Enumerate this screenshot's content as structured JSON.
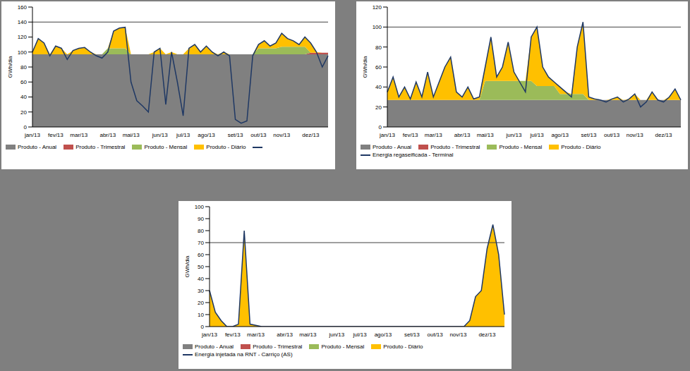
{
  "chart_data": [
    {
      "type": "area",
      "y_label": "GWh/dia",
      "stacked": true,
      "legend": "bottom",
      "tick_labels": true,
      "categories": [
        "jan/13",
        null,
        null,
        null,
        "fev/13",
        null,
        null,
        null,
        "mar/13",
        null,
        null,
        null,
        null,
        "abr/13",
        null,
        null,
        null,
        "mai/13",
        null,
        null,
        null,
        null,
        "jun/13",
        null,
        null,
        null,
        "jul/13",
        null,
        null,
        null,
        "ago/13",
        null,
        null,
        null,
        null,
        "set/13",
        null,
        null,
        null,
        "out/13",
        null,
        null,
        null,
        "nov/13",
        null,
        null,
        null,
        null,
        "dez/13",
        null,
        null,
        null
      ],
      "ylim": [
        0,
        160
      ],
      "yticks": [
        0,
        20,
        40,
        60,
        80,
        100,
        120,
        140,
        160
      ],
      "reference_line": 140,
      "series": [
        {
          "name": "Produto - Anual",
          "type": "area",
          "color": "#808080",
          "values": [
            97,
            97,
            97,
            97,
            97,
            97,
            97,
            97,
            97,
            97,
            97,
            97,
            97,
            97,
            97,
            97,
            97,
            97,
            97,
            97,
            97,
            97,
            97,
            97,
            97,
            97,
            97,
            97,
            97,
            97,
            97,
            97,
            97,
            97,
            97,
            97,
            97,
            97,
            97,
            97,
            97,
            97,
            97,
            97,
            97,
            97,
            97,
            97,
            97,
            97,
            97,
            97
          ]
        },
        {
          "name": "Produto - Trimestral",
          "type": "area",
          "color": "#c0504d",
          "values": [
            0,
            0,
            0,
            0,
            0,
            0,
            0,
            0,
            0,
            0,
            0,
            0,
            0,
            0,
            0,
            0,
            0,
            0,
            0,
            0,
            0,
            0,
            0,
            0,
            0,
            0,
            0,
            0,
            0,
            0,
            0,
            0,
            0,
            0,
            0,
            0,
            0,
            0,
            0,
            0,
            0,
            0,
            0,
            0,
            0,
            0,
            0,
            0,
            2,
            2,
            2,
            2
          ]
        },
        {
          "name": "Produto - Mensal",
          "type": "area",
          "color": "#9bbb59",
          "values": [
            0,
            0,
            0,
            0,
            0,
            0,
            0,
            0,
            0,
            0,
            0,
            0,
            0,
            8,
            8,
            8,
            8,
            0,
            0,
            0,
            0,
            0,
            0,
            0,
            0,
            0,
            0,
            0,
            0,
            0,
            0,
            0,
            0,
            0,
            0,
            0,
            0,
            0,
            0,
            8,
            8,
            8,
            8,
            10,
            10,
            10,
            10,
            10,
            0,
            0,
            0,
            0
          ]
        },
        {
          "name": "Produto - Diário",
          "type": "area",
          "color": "#ffc000",
          "values": [
            3,
            21,
            15,
            0,
            11,
            8,
            0,
            5,
            8,
            9,
            3,
            0,
            0,
            0,
            23,
            27,
            28,
            0,
            0,
            0,
            0,
            3,
            8,
            0,
            3,
            0,
            0,
            8,
            13,
            3,
            11,
            3,
            0,
            3,
            0,
            0,
            0,
            0,
            0,
            5,
            10,
            3,
            7,
            18,
            11,
            8,
            3,
            13,
            13,
            1,
            0,
            0
          ]
        },
        {
          "name": null,
          "type": "line",
          "color": "#1f3864",
          "values": [
            100,
            118,
            112,
            95,
            108,
            105,
            90,
            102,
            105,
            106,
            100,
            95,
            92,
            100,
            128,
            132,
            133,
            60,
            35,
            28,
            20,
            100,
            105,
            30,
            100,
            60,
            15,
            105,
            110,
            100,
            108,
            100,
            95,
            100,
            95,
            10,
            5,
            8,
            95,
            110,
            115,
            108,
            112,
            125,
            118,
            115,
            110,
            120,
            112,
            100,
            80,
            95
          ]
        }
      ]
    },
    {
      "type": "area",
      "y_label": "GWh/dia",
      "stacked": true,
      "legend": "bottom",
      "tick_labels": true,
      "categories": [
        "jan/13",
        null,
        null,
        null,
        "fev/13",
        null,
        null,
        null,
        "mar/13",
        null,
        null,
        null,
        null,
        "abr/13",
        null,
        null,
        null,
        "mai/13",
        null,
        null,
        null,
        null,
        "jun/13",
        null,
        null,
        null,
        "jul/13",
        null,
        null,
        null,
        "ago/13",
        null,
        null,
        null,
        null,
        "set/13",
        null,
        null,
        null,
        "out/13",
        null,
        null,
        null,
        "nov/13",
        null,
        null,
        null,
        null,
        "dez/13",
        null,
        null,
        null
      ],
      "ylim": [
        0,
        120
      ],
      "yticks": [
        0,
        20,
        40,
        60,
        80,
        100,
        120
      ],
      "reference_line": 100,
      "series": [
        {
          "name": "Produto - Anual",
          "type": "area",
          "color": "#808080",
          "values": [
            27,
            27,
            27,
            27,
            27,
            27,
            27,
            27,
            27,
            27,
            27,
            27,
            27,
            27,
            27,
            27,
            27,
            27,
            27,
            27,
            27,
            27,
            27,
            27,
            27,
            27,
            27,
            27,
            27,
            27,
            27,
            27,
            27,
            27,
            27,
            27,
            27,
            27,
            27,
            27,
            27,
            27,
            27,
            27,
            27,
            27,
            27,
            27,
            27,
            27,
            27,
            27
          ]
        },
        {
          "name": "Produto - Trimestral",
          "type": "area",
          "color": "#c0504d",
          "values": [
            0,
            0,
            0,
            0,
            0,
            0,
            0,
            0,
            0,
            0,
            0,
            0,
            0,
            0,
            0,
            0,
            0,
            0,
            0,
            0,
            0,
            0,
            0,
            0,
            0,
            0,
            0,
            0,
            0,
            0,
            0,
            0,
            0,
            0,
            0,
            0,
            0,
            0,
            0,
            0,
            0,
            0,
            0,
            0,
            0,
            0,
            0,
            0,
            0,
            0,
            0,
            0
          ]
        },
        {
          "name": "Produto - Mensal",
          "type": "area",
          "color": "#9bbb59",
          "values": [
            0,
            0,
            0,
            0,
            0,
            0,
            0,
            0,
            0,
            0,
            0,
            0,
            0,
            0,
            0,
            0,
            0,
            19,
            19,
            19,
            19,
            19,
            19,
            19,
            19,
            19,
            14,
            14,
            14,
            14,
            6,
            6,
            6,
            6,
            6,
            0,
            0,
            0,
            0,
            0,
            0,
            0,
            0,
            0,
            0,
            0,
            0,
            0,
            0,
            0,
            0,
            0
          ]
        },
        {
          "name": "Produto - Diário",
          "type": "area",
          "color": "#ffc000",
          "values": [
            8,
            23,
            3,
            13,
            1,
            18,
            3,
            28,
            3,
            18,
            33,
            43,
            8,
            3,
            13,
            1,
            3,
            14,
            44,
            4,
            14,
            39,
            9,
            0,
            0,
            44,
            59,
            19,
            9,
            4,
            7,
            2,
            0,
            47,
            72,
            3,
            1,
            0,
            0,
            1,
            3,
            0,
            1,
            6,
            0,
            0,
            8,
            0,
            0,
            3,
            11,
            0
          ]
        },
        {
          "name": "Energia regaseificada - Terminal",
          "type": "line",
          "color": "#1f3864",
          "values": [
            35,
            50,
            30,
            40,
            28,
            45,
            30,
            55,
            30,
            45,
            60,
            70,
            35,
            30,
            40,
            28,
            30,
            60,
            90,
            50,
            60,
            85,
            55,
            45,
            35,
            90,
            100,
            60,
            50,
            45,
            40,
            35,
            30,
            80,
            105,
            30,
            28,
            27,
            25,
            28,
            30,
            25,
            28,
            33,
            20,
            25,
            35,
            27,
            25,
            30,
            38,
            27
          ]
        }
      ]
    },
    {
      "type": "area",
      "y_label": "GWh/dia",
      "stacked": true,
      "legend": "bottom",
      "tick_labels": true,
      "categories": [
        "jan/13",
        null,
        null,
        null,
        "fev/13",
        null,
        null,
        null,
        "mar/13",
        null,
        null,
        null,
        null,
        "abr/13",
        null,
        null,
        null,
        "mai/13",
        null,
        null,
        null,
        null,
        "jun/13",
        null,
        null,
        null,
        "jul/13",
        null,
        null,
        null,
        "ago/13",
        null,
        null,
        null,
        null,
        "set/13",
        null,
        null,
        null,
        "out/13",
        null,
        null,
        null,
        "nov/13",
        null,
        null,
        null,
        null,
        "dez/13",
        null,
        null,
        null
      ],
      "ylim": [
        0,
        100
      ],
      "yticks": [
        0,
        10,
        20,
        30,
        40,
        50,
        60,
        70,
        80,
        90,
        100
      ],
      "reference_line": 70,
      "series": [
        {
          "name": "Produto - Anual",
          "type": "area",
          "color": "#808080",
          "values": [
            0,
            0,
            0,
            0,
            0,
            0,
            0,
            0,
            0,
            0,
            0,
            0,
            0,
            0,
            0,
            0,
            0,
            0,
            0,
            0,
            0,
            0,
            0,
            0,
            0,
            0,
            0,
            0,
            0,
            0,
            0,
            0,
            0,
            0,
            0,
            0,
            0,
            0,
            0,
            0,
            0,
            0,
            0,
            0,
            0,
            0,
            0,
            0,
            0,
            0,
            0,
            0
          ]
        },
        {
          "name": "Produto - Trimestral",
          "type": "area",
          "color": "#c0504d",
          "values": [
            0,
            0,
            0,
            0,
            0,
            0,
            0,
            0,
            0,
            0,
            0,
            0,
            0,
            0,
            0,
            0,
            0,
            0,
            0,
            0,
            0,
            0,
            0,
            0,
            0,
            0,
            0,
            0,
            0,
            0,
            0,
            0,
            0,
            0,
            0,
            0,
            0,
            0,
            0,
            0,
            0,
            0,
            0,
            0,
            0,
            0,
            0,
            0,
            0,
            0,
            0,
            0
          ]
        },
        {
          "name": "Produto - Mensal",
          "type": "area",
          "color": "#9bbb59",
          "values": [
            0,
            0,
            0,
            0,
            0,
            0,
            0,
            0,
            0,
            0,
            0,
            0,
            0,
            0,
            0,
            0,
            0,
            0,
            0,
            0,
            0,
            0,
            0,
            0,
            0,
            0,
            0,
            0,
            0,
            0,
            0,
            0,
            0,
            0,
            0,
            0,
            0,
            0,
            0,
            0,
            0,
            0,
            0,
            0,
            0,
            0,
            0,
            0,
            0,
            0,
            0,
            0
          ]
        },
        {
          "name": "Produto - Diário",
          "type": "area",
          "color": "#ffc000",
          "values": [
            30,
            12,
            5,
            0,
            0,
            2,
            80,
            2,
            1,
            0,
            0,
            0,
            0,
            0,
            0,
            0,
            0,
            0,
            0,
            0,
            0,
            0,
            0,
            0,
            0,
            0,
            0,
            0,
            0,
            0,
            0,
            0,
            0,
            0,
            0,
            0,
            0,
            0,
            0,
            0,
            0,
            0,
            0,
            0,
            0,
            5,
            25,
            30,
            65,
            85,
            60,
            10
          ]
        },
        {
          "name": "Energia injetada na RNT - Carriço (AS)",
          "type": "line",
          "color": "#1f3864",
          "values": [
            30,
            12,
            5,
            0,
            0,
            2,
            80,
            2,
            1,
            0,
            0,
            0,
            0,
            0,
            0,
            0,
            0,
            0,
            0,
            0,
            0,
            0,
            0,
            0,
            0,
            0,
            0,
            0,
            0,
            0,
            0,
            0,
            0,
            0,
            0,
            0,
            0,
            0,
            0,
            0,
            0,
            0,
            0,
            0,
            0,
            5,
            25,
            30,
            65,
            85,
            60,
            10
          ]
        }
      ]
    }
  ]
}
